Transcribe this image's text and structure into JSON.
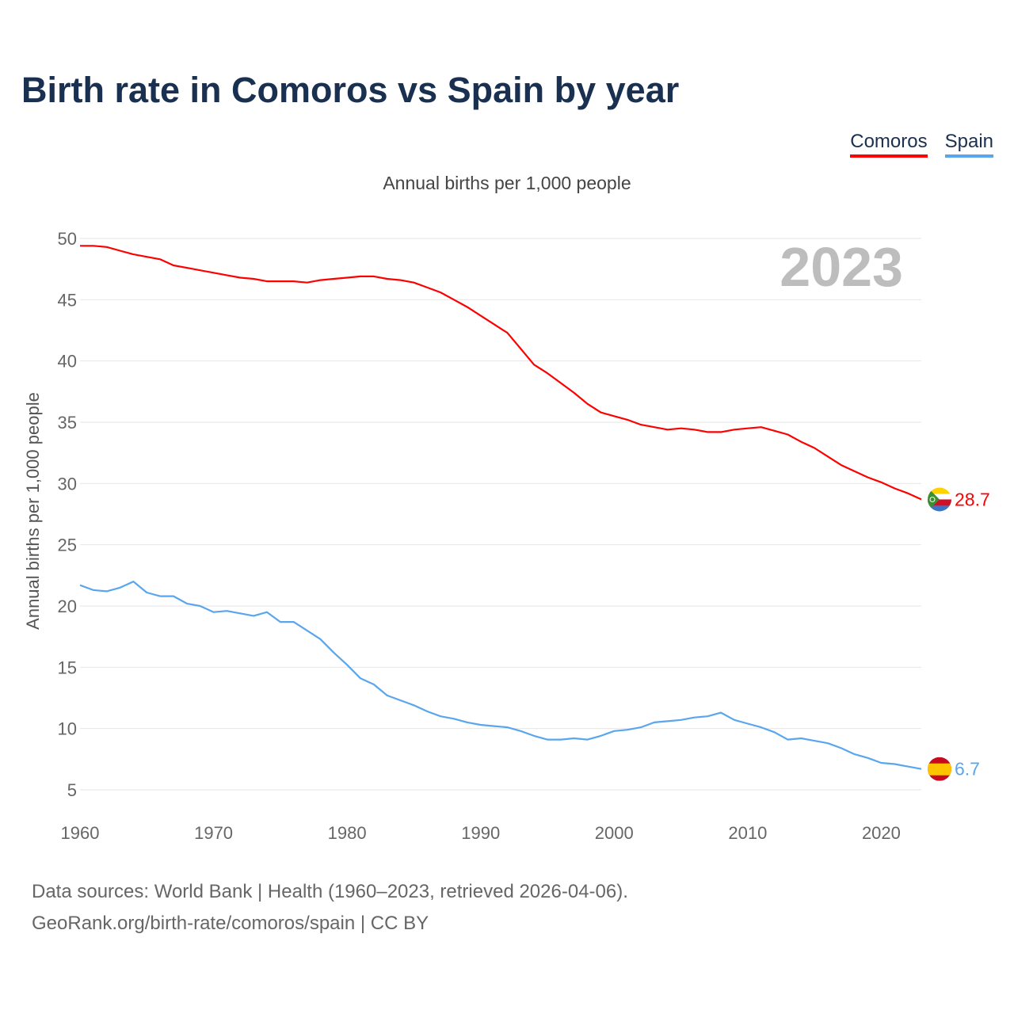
{
  "chart_data": {
    "type": "line",
    "title": "Birth rate in Comoros vs Spain by year",
    "subtitle": "Annual births per 1,000 people",
    "xlabel": "",
    "ylabel": "Annual births per 1,000 people",
    "xlim": [
      1960,
      2023
    ],
    "ylim": [
      5,
      50
    ],
    "yticks": [
      "5",
      "10",
      "15",
      "20",
      "25",
      "30",
      "35",
      "40",
      "45",
      "50"
    ],
    "xticks": [
      "1960",
      "1970",
      "1980",
      "1990",
      "2000",
      "2010",
      "2020"
    ],
    "grid": true,
    "legend_position": "top-right",
    "year_watermark": "2023",
    "x": [
      1960,
      1961,
      1962,
      1963,
      1964,
      1965,
      1966,
      1967,
      1968,
      1969,
      1970,
      1971,
      1972,
      1973,
      1974,
      1975,
      1976,
      1977,
      1978,
      1979,
      1980,
      1981,
      1982,
      1983,
      1984,
      1985,
      1986,
      1987,
      1988,
      1989,
      1990,
      1991,
      1992,
      1993,
      1994,
      1995,
      1996,
      1997,
      1998,
      1999,
      2000,
      2001,
      2002,
      2003,
      2004,
      2005,
      2006,
      2007,
      2008,
      2009,
      2010,
      2011,
      2012,
      2013,
      2014,
      2015,
      2016,
      2017,
      2018,
      2019,
      2020,
      2021,
      2022,
      2023
    ],
    "series": [
      {
        "name": "Comoros",
        "color": "#ff0000",
        "end_label": "28.7",
        "values": [
          49.4,
          49.4,
          49.3,
          49.0,
          48.7,
          48.5,
          48.3,
          47.8,
          47.6,
          47.4,
          47.2,
          47.0,
          46.8,
          46.7,
          46.5,
          46.5,
          46.5,
          46.4,
          46.6,
          46.7,
          46.8,
          46.9,
          46.9,
          46.7,
          46.6,
          46.4,
          46.0,
          45.6,
          45.0,
          44.4,
          43.7,
          43.0,
          42.3,
          41.0,
          39.7,
          39.0,
          38.2,
          37.4,
          36.5,
          35.8,
          35.5,
          35.2,
          34.8,
          34.6,
          34.4,
          34.5,
          34.4,
          34.2,
          34.2,
          34.4,
          34.5,
          34.6,
          34.3,
          34.0,
          33.4,
          32.9,
          32.2,
          31.5,
          31.0,
          30.5,
          30.1,
          29.6,
          29.2,
          28.7
        ]
      },
      {
        "name": "Spain",
        "color": "#5aa6ee",
        "end_label": "6.7",
        "values": [
          21.7,
          21.3,
          21.2,
          21.5,
          22.0,
          21.1,
          20.8,
          20.8,
          20.2,
          20.0,
          19.5,
          19.6,
          19.4,
          19.2,
          19.5,
          18.7,
          18.7,
          18.0,
          17.3,
          16.2,
          15.2,
          14.1,
          13.6,
          12.7,
          12.3,
          11.9,
          11.4,
          11.0,
          10.8,
          10.5,
          10.3,
          10.2,
          10.1,
          9.8,
          9.4,
          9.1,
          9.1,
          9.2,
          9.1,
          9.4,
          9.8,
          9.9,
          10.1,
          10.5,
          10.6,
          10.7,
          10.9,
          11.0,
          11.3,
          10.7,
          10.4,
          10.1,
          9.7,
          9.1,
          9.2,
          9.0,
          8.8,
          8.4,
          7.9,
          7.6,
          7.2,
          7.1,
          6.9,
          6.7
        ]
      }
    ]
  },
  "source": {
    "line1": "Data sources: World Bank | Health (1960–2023, retrieved 2026-04-06).",
    "line2": "GeoRank.org/birth-rate/comoros/spain | CC BY"
  }
}
